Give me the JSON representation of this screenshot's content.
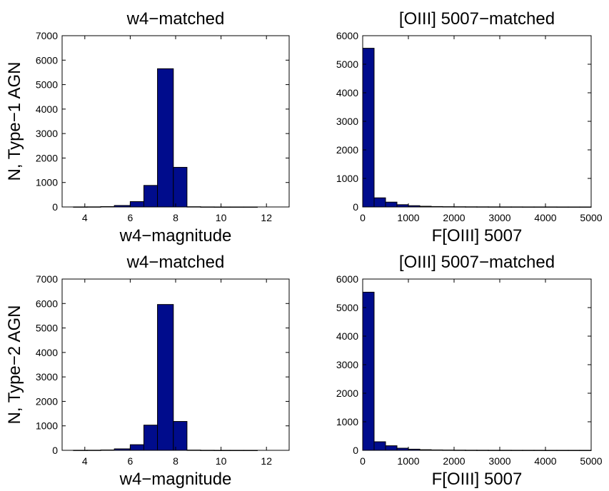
{
  "chart_data": [
    {
      "type": "bar",
      "title": "w4−matched",
      "xlabel": "w4−magnitude",
      "ylabel": "N, Type−1 AGN",
      "xlim": [
        3,
        13
      ],
      "ylim": [
        0,
        7000
      ],
      "xticks": [
        4,
        6,
        8,
        10,
        12
      ],
      "yticks": [
        0,
        1000,
        2000,
        3000,
        4000,
        5000,
        6000,
        7000
      ],
      "bin_edges": [
        3.5,
        4.1,
        4.7,
        5.3,
        6.0,
        6.6,
        7.2,
        7.9,
        8.5,
        9.1,
        9.7,
        10.4,
        11.0,
        11.6,
        12.2
      ],
      "values": [
        3,
        5,
        15,
        60,
        220,
        880,
        5650,
        1620,
        10,
        3,
        1,
        1,
        1,
        0
      ]
    },
    {
      "type": "bar",
      "title": "[OIII] 5007−matched",
      "xlabel": "F[OIII] 5007",
      "ylabel": "",
      "xlim": [
        0,
        5000
      ],
      "ylim": [
        0,
        6000
      ],
      "xticks": [
        0,
        1000,
        2000,
        3000,
        4000,
        5000
      ],
      "yticks": [
        0,
        1000,
        2000,
        3000,
        4000,
        5000,
        6000
      ],
      "bin_edges": [
        0,
        250,
        500,
        750,
        1000,
        1250,
        1500,
        1750,
        2000,
        2250,
        2500,
        2750,
        3000,
        3250,
        3500,
        3750,
        4000,
        4250,
        4500,
        4750,
        5000
      ],
      "values": [
        5560,
        320,
        170,
        80,
        45,
        25,
        15,
        10,
        8,
        6,
        5,
        4,
        3,
        3,
        2,
        2,
        2,
        1,
        1,
        1
      ]
    },
    {
      "type": "bar",
      "title": "w4−matched",
      "xlabel": "w4−magnitude",
      "ylabel": "N, Type−2 AGN",
      "xlim": [
        3,
        13
      ],
      "ylim": [
        0,
        7000
      ],
      "xticks": [
        4,
        6,
        8,
        10,
        12
      ],
      "yticks": [
        0,
        1000,
        2000,
        3000,
        4000,
        5000,
        6000,
        7000
      ],
      "bin_edges": [
        3.5,
        4.1,
        4.7,
        5.3,
        6.0,
        6.6,
        7.2,
        7.9,
        8.5,
        9.1,
        9.7,
        10.4,
        11.0,
        11.6,
        12.2
      ],
      "values": [
        3,
        5,
        15,
        60,
        230,
        1030,
        5960,
        1180,
        10,
        3,
        1,
        1,
        1,
        0
      ]
    },
    {
      "type": "bar",
      "title": "[OIII] 5007−matched",
      "xlabel": "F[OIII] 5007",
      "ylabel": "",
      "xlim": [
        0,
        5000
      ],
      "ylim": [
        0,
        6000
      ],
      "xticks": [
        0,
        1000,
        2000,
        3000,
        4000,
        5000
      ],
      "yticks": [
        0,
        1000,
        2000,
        3000,
        4000,
        5000,
        6000
      ],
      "bin_edges": [
        0,
        250,
        500,
        750,
        1000,
        1250,
        1500,
        1750,
        2000,
        2250,
        2500,
        2750,
        3000,
        3250,
        3500,
        3750,
        4000,
        4250,
        4500,
        4750,
        5000
      ],
      "values": [
        5540,
        300,
        160,
        75,
        40,
        22,
        14,
        10,
        7,
        5,
        4,
        3,
        3,
        2,
        2,
        2,
        1,
        1,
        1,
        1
      ]
    }
  ],
  "colors": {
    "bar_fill": "#000c8c",
    "bar_edge": "#000000",
    "axes": "#000000",
    "background": "#ffffff"
  }
}
